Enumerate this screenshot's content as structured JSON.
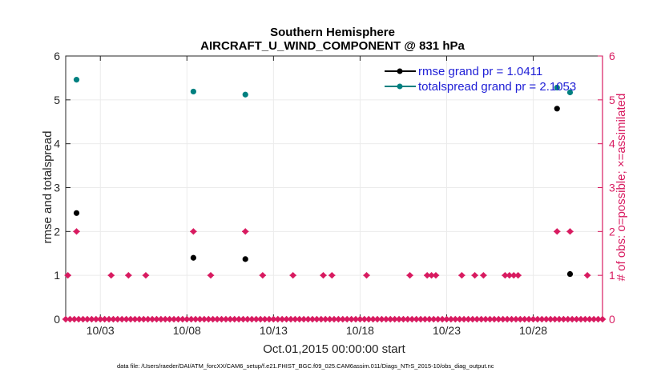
{
  "chart_data": {
    "type": "scatter",
    "title": "Southern Hemisphere",
    "subtitle": "AIRCRAFT_U_WIND_COMPONENT @ 831 hPa",
    "xlabel": "Oct.01,2015 00:00:00 start",
    "ylabel": "rmse and totalspread",
    "ylabel_right": "# of obs: o=possible; ×=assimilated",
    "footnote": "data file: /Users/raeder/DAI/ATM_forcXX/CAM6_setup/f.e21.FHIST_BGC.f09_025.CAM6assim.011/Diags_NTrS_2015-10/obs_diag_output.nc",
    "xlim": [
      1,
      32
    ],
    "ylim": [
      0,
      6
    ],
    "ylim_right": [
      0,
      6
    ],
    "x_ticks": [
      3,
      8,
      13,
      18,
      23,
      28
    ],
    "x_tick_labels": [
      "10/03",
      "10/08",
      "10/13",
      "10/18",
      "10/23",
      "10/28"
    ],
    "y_ticks": [
      0,
      1,
      2,
      3,
      4,
      5,
      6
    ],
    "y_tick_labels": [
      "0",
      "1",
      "2",
      "3",
      "4",
      "5",
      "6"
    ],
    "y_tick_labels_right": [
      "0",
      "1",
      "2",
      "3",
      "4",
      "5",
      "6"
    ],
    "legend_position": "top-right",
    "colors": {
      "rmse": "#000000",
      "spread": "#008080",
      "obs": "#d81b60",
      "grid": "#ebebeb",
      "legend_text": "#1f1fd6"
    },
    "series": [
      {
        "name": "rmse grand pr = 1.0411",
        "axis": "left",
        "marker": "o",
        "x": [
          1.625,
          8.375,
          11.375,
          29.375,
          30.125
        ],
        "y": [
          2.42,
          1.4,
          1.37,
          4.8,
          1.03
        ]
      },
      {
        "name": "totalspread grand pr = 2.1053",
        "axis": "left",
        "marker": "o",
        "x": [
          1.625,
          8.375,
          11.375,
          29.375,
          30.125
        ],
        "y": [
          5.46,
          5.19,
          5.12,
          5.28,
          5.17
        ]
      },
      {
        "name": "obs assimilated",
        "axis": "right",
        "marker": "x",
        "x": [
          1.125,
          1.625,
          3.625,
          4.625,
          5.625,
          8.375,
          9.375,
          11.375,
          12.375,
          14.125,
          15.875,
          16.375,
          18.375,
          20.875,
          21.875,
          22.125,
          22.375,
          23.875,
          24.625,
          25.125,
          26.375,
          26.625,
          26.875,
          27.125,
          29.375,
          30.125,
          31.125
        ],
        "y": [
          1,
          2,
          1,
          1,
          1,
          2,
          1,
          2,
          1,
          1,
          1,
          1,
          1,
          1,
          1,
          1,
          1,
          1,
          1,
          1,
          1,
          1,
          1,
          1,
          2,
          2,
          1
        ]
      }
    ],
    "zero_obs_start": 1,
    "zero_obs_end": 32,
    "zero_obs_step": 0.25
  }
}
